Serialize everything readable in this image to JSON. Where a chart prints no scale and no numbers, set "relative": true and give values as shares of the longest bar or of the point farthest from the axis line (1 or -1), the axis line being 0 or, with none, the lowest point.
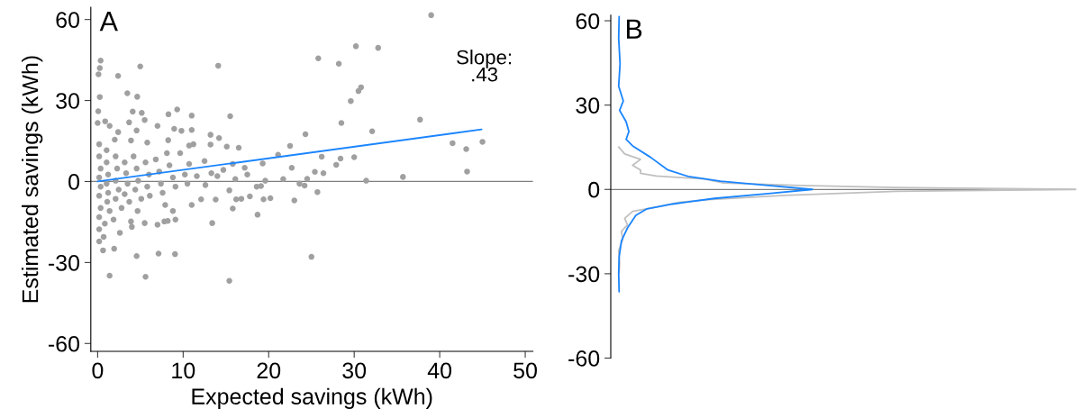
{
  "chart_data": [
    {
      "type": "scatter",
      "xlabel": "Expected savings (kWh)",
      "ylabel": "Estimated savings (kWh)",
      "xlim": [
        -0.8,
        50.9
      ],
      "ylim": [
        -62.9,
        64.5
      ],
      "xticks": [
        0,
        10,
        20,
        30,
        40,
        50
      ],
      "yticks": [
        -60,
        -30,
        0,
        30,
        60
      ],
      "annotations": [
        "A",
        "Slope:\n.43"
      ],
      "ref_lines": [
        {
          "axis": "y",
          "value": 0,
          "color": "#808080"
        }
      ],
      "series": [
        {
          "type": "scatter",
          "color": "#a0a0a0",
          "x": [
            39.0,
            30.2,
            32.8,
            25.8,
            28.2,
            30.8,
            30.5,
            29.6,
            37.7,
            28.5,
            32.1,
            24.3,
            41.5,
            43.1,
            45.0,
            43.2,
            35.7,
            31.4,
            30.0,
            28.4,
            27.9,
            26.2,
            26.4,
            25.4,
            24.5,
            23.6,
            24.2,
            25.7,
            25.0,
            0.35,
            0.25,
            0.1,
            4.98,
            2.39,
            14.1,
            0.25,
            3.47,
            4.63,
            0.07,
            4.1,
            5.16,
            8.28,
            9.3,
            11.0,
            15.5,
            0,
            0.88,
            3.68,
            5.5,
            7.0,
            8.95,
            9.8,
            11.0,
            13.2,
            14.2,
            2.4,
            4.56,
            1.4,
            2.0,
            3.9,
            5.8,
            8.25,
            10.7,
            13.2,
            15.1,
            16.5,
            22.5,
            21.1,
            22.7,
            19.3,
            17.2,
            17.5,
            21.7,
            19.6,
            18.6,
            19.1,
            15.4,
            16.2,
            16.8,
            17.8,
            19.4,
            20.2,
            18.7,
            23.0,
            15.8,
            13.8,
            13.4,
            12.1,
            11.0,
            9.1,
            8.8,
            8.2,
            7.8,
            7.0,
            5.5,
            4.67,
            3.9,
            4.0,
            2.6,
            1.86,
            0.84,
            0.18,
            0.18,
            0.7,
            0.63,
            1.93,
            4.56,
            7.12,
            9.05,
            1.4,
            5.6,
            15.4,
            0.18,
            0.18,
            0.35,
            0.18,
            0.35,
            0.18,
            0.35,
            0.18,
            1.05,
            1.05,
            1.23,
            1.05,
            1.23,
            1.12,
            1.4,
            2.1,
            2.28,
            2.1,
            2.46,
            2.1,
            2.8,
            3.16,
            3.33,
            3.5,
            3.16,
            3.7,
            4.2,
            4.56,
            4.74,
            4.4,
            5.1,
            5.6,
            6.0,
            5.8,
            6.1,
            6.8,
            7.2,
            7.4,
            7.6,
            7.9,
            8.4,
            8.8,
            9.1,
            8.1,
            9.65,
            10.2,
            10.5,
            10.7,
            11.2,
            11.6,
            12.5,
            12.6,
            14.0,
            14.7,
            16.1,
            15.8,
            13.3
          ],
          "values": [
            61.6,
            50.1,
            49.5,
            45.6,
            43.6,
            34.9,
            33.5,
            29.8,
            22.9,
            21.7,
            18.6,
            17.5,
            14.2,
            12.0,
            14.7,
            3.7,
            1.7,
            0.3,
            9.0,
            8.5,
            6.2,
            9.2,
            3.1,
            3.6,
            1.0,
            -0.8,
            -1.5,
            -3.9,
            -27.9,
            44.8,
            42.0,
            39.7,
            42.6,
            39.1,
            42.9,
            31.3,
            32.7,
            31.4,
            26.0,
            25.9,
            25.4,
            24.9,
            26.7,
            24.4,
            24.2,
            21.7,
            22.3,
            21.9,
            22.8,
            20.6,
            19.5,
            18.8,
            19.1,
            17.3,
            16.1,
            18.3,
            18.9,
            20.6,
            15.5,
            15.2,
            14.4,
            15.3,
            13.3,
            13.7,
            12.9,
            12.5,
            13.2,
            9.9,
            5.1,
            6.7,
            5.1,
            2.6,
            0.9,
            0.3,
            -1.9,
            -1.7,
            -3.3,
            -6.6,
            -6.4,
            -5.5,
            -6.6,
            -6.2,
            -12.3,
            -7.0,
            -10.0,
            -6.7,
            -15.4,
            -6.6,
            -8.7,
            -14.1,
            -10.9,
            -14.6,
            -14.8,
            -16.0,
            -15.4,
            -10.9,
            -14.8,
            -16.8,
            -19.0,
            -14.1,
            -15.6,
            -17.7,
            -22.2,
            -20.5,
            -25.5,
            -24.9,
            -27.6,
            -26.7,
            -26.9,
            -34.9,
            -35.3,
            -36.8,
            13.8,
            9.3,
            4.8,
            1.5,
            -1.9,
            -5.3,
            -9.8,
            -13.2,
            11.6,
            7.1,
            2.6,
            -0.8,
            -4.2,
            -7.5,
            -10.9,
            9.3,
            4.8,
            0.3,
            -3.0,
            -6.4,
            -9.8,
            7.1,
            3.1,
            -0.8,
            -4.7,
            -7.5,
            9.3,
            4.8,
            0.3,
            -3.0,
            -6.4,
            7.1,
            2.6,
            -1.9,
            -5.3,
            8.2,
            3.7,
            -0.8,
            -4.2,
            -8.7,
            6.0,
            1.5,
            -1.9,
            10.5,
            10.5,
            2.6,
            -0.8,
            6.5,
            13.8,
            2.0,
            7.6,
            -1.3,
            2.0,
            4.3,
            0.9,
            6.5,
            3.1
          ]
        },
        {
          "type": "line",
          "color": "#1a85ff",
          "x": [
            0,
            44.9
          ],
          "values": [
            0,
            19.3
          ]
        }
      ]
    },
    {
      "type": "line",
      "orientation": "horizontal",
      "relative": true,
      "ylim": [
        -60,
        62
      ],
      "yticks": [
        -60,
        -30,
        0,
        30,
        60
      ],
      "annotations": [
        "B"
      ],
      "ref_lines": [
        {
          "axis": "y",
          "value": 0,
          "color": "#808080"
        }
      ],
      "series": [
        {
          "color": "#c0c0c0",
          "x": [
            15.1,
            12.6,
            10.7,
            8.6,
            6.9,
            5.7,
            4.8,
            3.7,
            2.3,
            1.4,
            0.7,
            0,
            -0.7,
            -2.1,
            -3.7,
            -4.6,
            -6.3,
            -7.8,
            -10.3,
            -12.6,
            -14.9,
            -17.8,
            -21.8,
            -26.3,
            -29.8
          ],
          "values": [
            0.017,
            0.03,
            0.064,
            0.047,
            0.064,
            0.064,
            0.098,
            0.201,
            0.243,
            0.408,
            0.614,
            1,
            0.614,
            0.374,
            0.201,
            0.147,
            0.098,
            0.047,
            0.03,
            0.036,
            0.023,
            0.026,
            0.017,
            0.019,
            0.018
          ]
        },
        {
          "color": "#1a85ff",
          "x": [
            61.5,
            53.8,
            44.7,
            36.7,
            31.5,
            28.1,
            24.1,
            20.6,
            17.8,
            15.5,
            11.5,
            6.9,
            4.6,
            2.9,
            1.4,
            0,
            -1.5,
            -3.2,
            -5.2,
            -6.9,
            -9.2,
            -13.7,
            -18.3,
            -24.1,
            -29.8,
            -36.4
          ],
          "values": [
            0.018,
            0.017,
            0.02,
            0.017,
            0.027,
            0.019,
            0.033,
            0.039,
            0.033,
            0.047,
            0.085,
            0.123,
            0.167,
            0.236,
            0.339,
            0.434,
            0.339,
            0.223,
            0.133,
            0.078,
            0.054,
            0.036,
            0.023,
            0.018,
            0.017,
            0.018
          ]
        }
      ]
    }
  ]
}
